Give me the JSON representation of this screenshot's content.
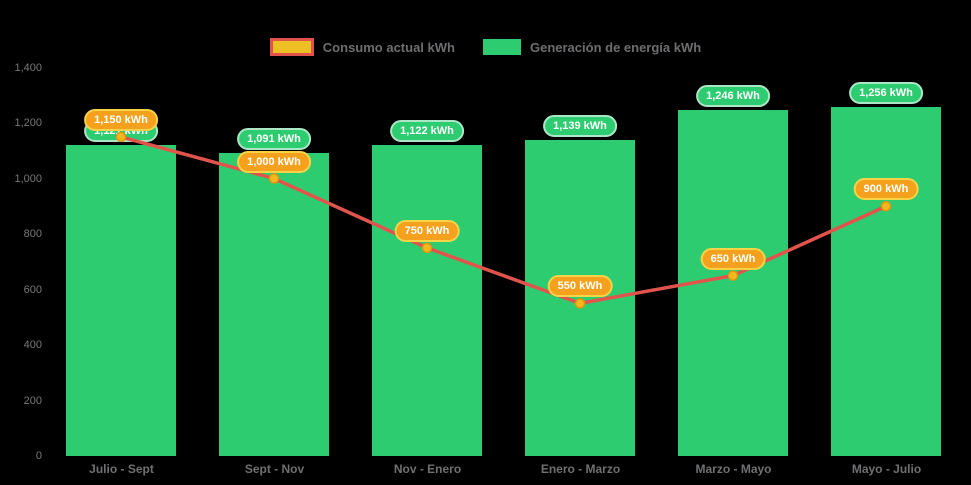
{
  "legend": {
    "items": [
      {
        "key": "consumo",
        "swatch_fill": "#edc126",
        "swatch_border": "#e0524a"
      },
      {
        "key": "generacion",
        "swatch_fill": "#2ecc71",
        "swatch_border": "#2ecc71"
      }
    ]
  },
  "colors": {
    "background": "#000000",
    "bar": "#2ecc71",
    "line": "#e0544c",
    "marker_fill": "#f5b81f",
    "marker_stroke": "#e2950f",
    "bar_label_bg": "#2ecc71",
    "bar_label_border": "#abe7c6",
    "point_label_bg": "#f5a11d",
    "point_label_border": "#f7d347",
    "axis_text": "#77787b"
  },
  "chart_data": {
    "type": "bar",
    "subtype": "combo-bar-line",
    "categories": [
      "Julio - Sept",
      "Sept - Nov",
      "Nov - Enero",
      "Enero - Marzo",
      "Marzo - Mayo",
      "Mayo - Julio"
    ],
    "series": [
      {
        "name": "Generación de energía kWh",
        "type": "bar",
        "values": [
          1121,
          1091,
          1122,
          1139,
          1246,
          1256
        ],
        "labels": [
          "1,121 kWh",
          "1,091 kWh",
          "1,122 kWh",
          "1,139 kWh",
          "1,246 kWh",
          "1,256 kWh"
        ]
      },
      {
        "name": "Consumo actual kWh",
        "type": "line",
        "values": [
          1150,
          1000,
          750,
          550,
          650,
          900
        ],
        "labels": [
          "1,150 kWh",
          "1,000 kWh",
          "750 kWh",
          "550 kWh",
          "650 kWh",
          "900 kWh"
        ]
      }
    ],
    "ylim": [
      0,
      1400
    ],
    "ytick_labels": [
      "0",
      "200",
      "400",
      "600",
      "800",
      "1,000",
      "1,200",
      "1,400"
    ],
    "grid": false,
    "legend_position": "top"
  }
}
